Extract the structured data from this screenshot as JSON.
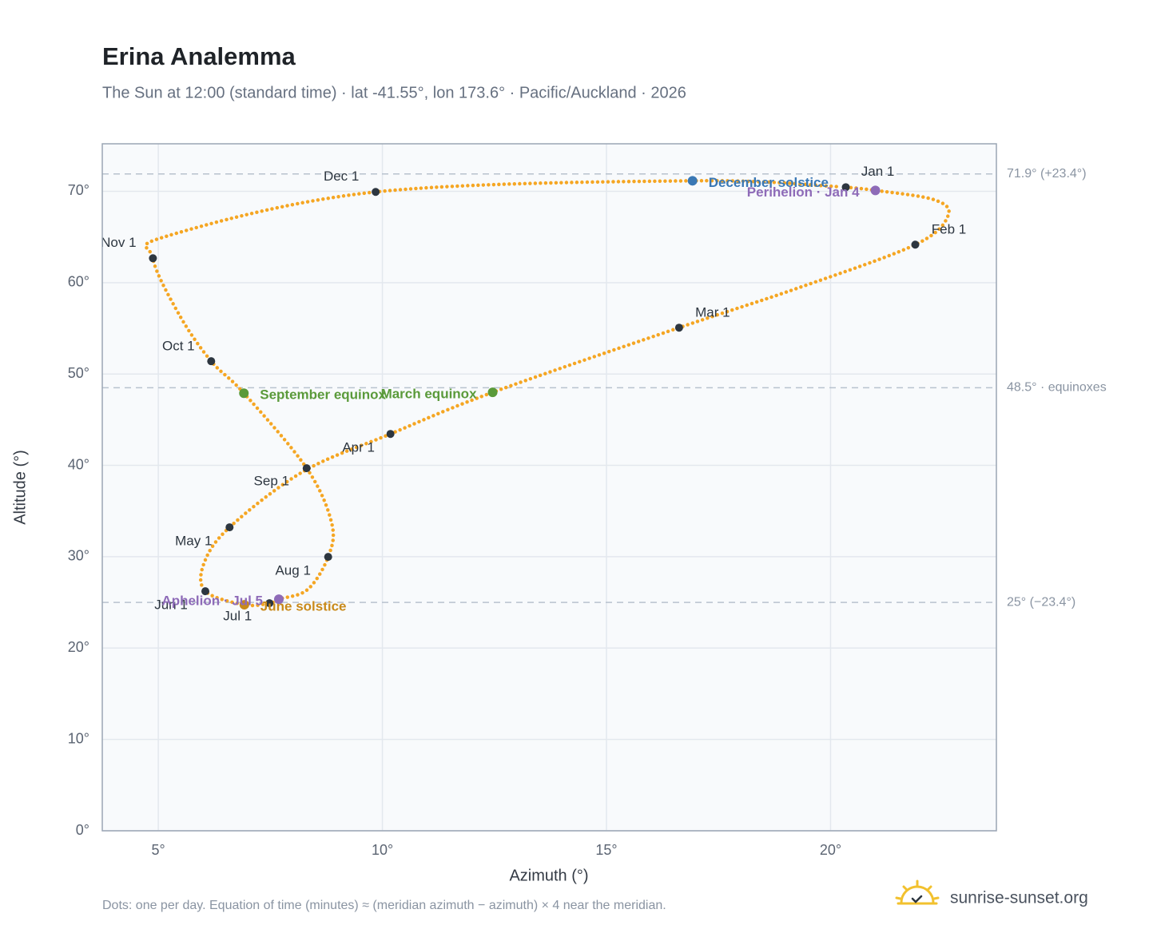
{
  "chart_data": {
    "type": "analemma",
    "title": "Erina Analemma",
    "subtitle": "The Sun at 12:00 (standard time) · lat -41.55°, lon 173.6° · Pacific/Auckland · 2026",
    "x_label": "Azimuth (°)",
    "y_label": "Altitude (°)",
    "footnote": "Dots: one per day. Equation of time (minutes) ≈ (meridian azimuth − azimuth) × 4 near the meridian.",
    "brand": "sunrise-sunset.org",
    "xlim": [
      3.75,
      23.7
    ],
    "ylim": [
      0,
      75.2
    ],
    "xticks": [
      {
        "value": 5,
        "label": "5°"
      },
      {
        "value": 10,
        "label": "10°"
      },
      {
        "value": 15,
        "label": "15°"
      },
      {
        "value": 20,
        "label": "20°"
      }
    ],
    "yticks": [
      {
        "value": 0,
        "label": "0°"
      },
      {
        "value": 10,
        "label": "10°"
      },
      {
        "value": 20,
        "label": "20°"
      },
      {
        "value": 30,
        "label": "30°"
      },
      {
        "value": 40,
        "label": "40°"
      },
      {
        "value": 50,
        "label": "50°"
      },
      {
        "value": 60,
        "label": "60°"
      },
      {
        "value": 70,
        "label": "70°"
      }
    ],
    "grid": true,
    "reference_lines": [
      {
        "value": 71.9,
        "label": "71.9° (+23.4°)"
      },
      {
        "value": 48.5,
        "label": "48.5° · equinoxes"
      },
      {
        "value": 25,
        "label": "25° (−23.4°)"
      }
    ],
    "curve": {
      "color": "#f5a623",
      "x": [
        20.34,
        21.0,
        22.32,
        22.62,
        21.89,
        19.29,
        16.62,
        12.46,
        10.18,
        8.24,
        6.59,
        6.02,
        6.05,
        6.92,
        7.48,
        7.69,
        8.33,
        8.79,
        8.87,
        8.31,
        6.91,
        6.18,
        5.48,
        4.88,
        5.21,
        9.85,
        16.92,
        20.2
      ],
      "y": [
        70.45,
        70.1,
        69.06,
        67.31,
        64.16,
        59.44,
        55.07,
        47.99,
        43.44,
        39.34,
        33.22,
        29.28,
        26.22,
        24.74,
        24.91,
        25.35,
        26.4,
        29.98,
        33.65,
        39.69,
        47.9,
        51.4,
        56.38,
        62.67,
        65.12,
        69.93,
        71.15,
        70.5
      ]
    },
    "months": {
      "color": "#2d3640",
      "labels": [
        "Jan 1",
        "Feb 1",
        "Mar 1",
        "Apr 1",
        "May 1",
        "Jun 1",
        "Jul 1",
        "Aug 1",
        "Sep 1",
        "Oct 1",
        "Nov 1",
        "Dec 1"
      ],
      "x": [
        20.34,
        21.89,
        16.62,
        10.18,
        6.59,
        6.05,
        7.48,
        8.79,
        8.31,
        6.18,
        4.88,
        9.85
      ],
      "y": [
        70.45,
        64.16,
        55.07,
        43.44,
        33.22,
        26.22,
        24.91,
        29.98,
        39.69,
        51.4,
        62.67,
        69.93
      ]
    },
    "events": [
      {
        "label": "December solstice",
        "x": 16.92,
        "y": 71.15,
        "color": "#3a78b5"
      },
      {
        "label": "Perihelion · Jan 4",
        "x": 21.0,
        "y": 70.1,
        "color": "#8e6bb8"
      },
      {
        "label": "March equinox",
        "x": 12.46,
        "y": 47.99,
        "color": "#5a9a3a"
      },
      {
        "label": "September equinox",
        "x": 6.91,
        "y": 47.9,
        "color": "#5a9a3a"
      },
      {
        "label": "June solstice",
        "x": 6.92,
        "y": 24.74,
        "color": "#c98a1a"
      },
      {
        "label": "Aphelion · Jul 5",
        "x": 7.69,
        "y": 25.35,
        "color": "#8e6bb8"
      }
    ]
  }
}
